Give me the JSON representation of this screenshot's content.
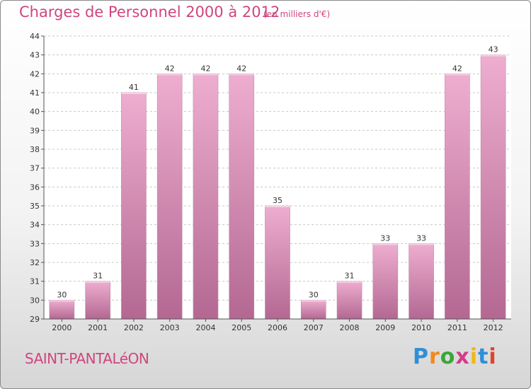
{
  "chart_data": {
    "type": "bar",
    "title": "Charges de Personnel 2000 à 2012",
    "subtitle": "(en milliers d'€)",
    "categories": [
      "2000",
      "2001",
      "2002",
      "2003",
      "2004",
      "2005",
      "2006",
      "2007",
      "2008",
      "2009",
      "2010",
      "2011",
      "2012"
    ],
    "values": [
      30,
      31,
      41,
      42,
      42,
      42,
      35,
      30,
      31,
      33,
      33,
      42,
      43
    ],
    "ylim": [
      29,
      44
    ],
    "yticks": [
      29,
      30,
      31,
      32,
      33,
      34,
      35,
      36,
      37,
      38,
      39,
      40,
      41,
      42,
      43,
      44
    ],
    "grid": true,
    "colors": {
      "bar": "#d98cb5",
      "bar_light": "#f0b3d2",
      "bar_dark": "#b96d98",
      "accent": "#d0457e"
    }
  },
  "footer": {
    "location": "SAINT-PANTALéON",
    "brand_letters": [
      "P",
      "r",
      "o",
      "x",
      "i",
      "t",
      "i"
    ],
    "brand_colors": [
      "#2f8fd6",
      "#f08a1c",
      "#3aa639",
      "#d63a8a",
      "#f2b51b",
      "#2f8fd6",
      "#e2432f"
    ]
  }
}
